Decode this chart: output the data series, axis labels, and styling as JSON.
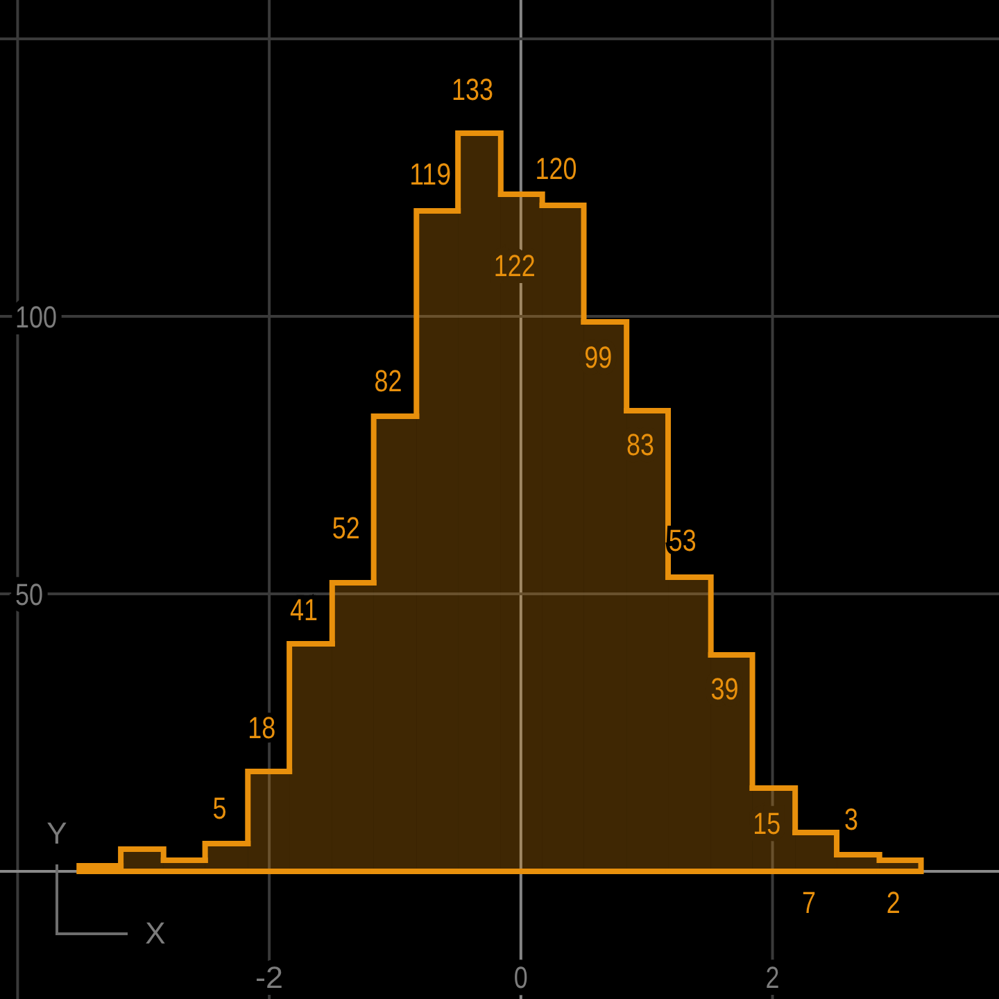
{
  "chart_data": {
    "type": "histogram",
    "xlabel": "X",
    "ylabel": "Y",
    "bins": [
      -3.51,
      -3.18,
      -2.84,
      -2.51,
      -2.17,
      -1.84,
      -1.5,
      -1.17,
      -0.83,
      -0.5,
      -0.16,
      0.17,
      0.5,
      0.84,
      1.17,
      1.51,
      1.84,
      2.18,
      2.51,
      2.85,
      3.18
    ],
    "values": [
      1,
      4,
      2,
      5,
      18,
      41,
      52,
      82,
      119,
      133,
      122,
      120,
      99,
      83,
      53,
      39,
      15,
      7,
      3,
      2
    ],
    "value_labels": [
      null,
      null,
      null,
      "5",
      "18",
      "41",
      "52",
      "82",
      "119",
      "133",
      "122",
      "120",
      "99",
      "83",
      "53",
      "39",
      "15",
      "7",
      "3",
      "2"
    ],
    "color": "#e8900c",
    "xlim": [
      -4.14,
      3.8
    ],
    "ylim": [
      -23,
      157
    ],
    "xticks": [
      {
        "value": -4,
        "label": null
      },
      -2,
      0,
      2
    ],
    "yticks": [
      {
        "value": 0,
        "label": null
      },
      50,
      100,
      {
        "value": 150,
        "label": null
      }
    ],
    "grid": true
  }
}
